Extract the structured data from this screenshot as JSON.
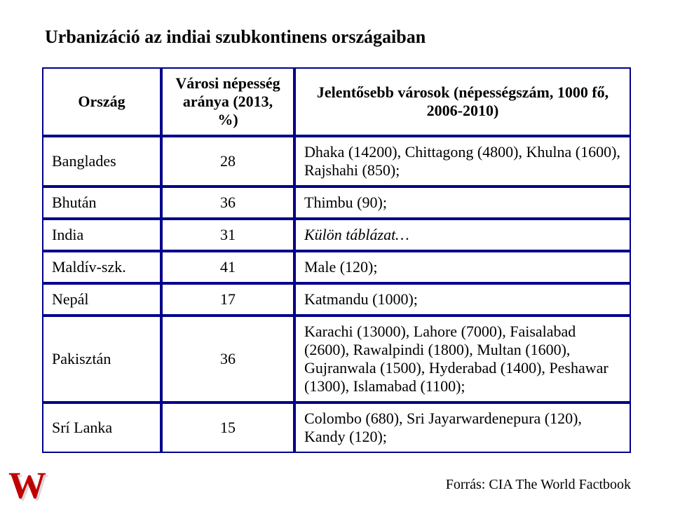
{
  "title": "Urbanizáció az indiai szubkontinens országaiban",
  "columns": {
    "c0": "Ország",
    "c1": "Városi népesség aránya (2013, %)",
    "c2": "Jelentősebb városok (népességszám, 1000 fő, 2006-2010)"
  },
  "rows": [
    {
      "country": "Banglades",
      "pct": "28",
      "cities": "Dhaka (14200), Chittagong (4800), Khulna (1600), Rajshahi (850);"
    },
    {
      "country": "Bhután",
      "pct": "36",
      "cities": "Thimbu (90);"
    },
    {
      "country": "India",
      "pct": "31",
      "cities": "Külön táblázat…",
      "italic": true
    },
    {
      "country": "Maldív-szk.",
      "pct": "41",
      "cities": "Male (120);"
    },
    {
      "country": "Nepál",
      "pct": "17",
      "cities": "Katmandu (1000);"
    },
    {
      "country": "Pakisztán",
      "pct": "36",
      "cities": "Karachi (13000), Lahore (7000), Faisalabad (2600), Rawalpindi (1800), Multan (1600), Gujranwala (1500), Hyderabad (1400), Peshawar (1300), Islamabad (1100);"
    },
    {
      "country": "Srí Lanka",
      "pct": "15",
      "cities": "Colombo (680), Sri Jayarwardenepura (120), Kandy (120);"
    }
  ],
  "source": "Forrás: CIA The World Factbook",
  "watermark": "W",
  "colors": {
    "border": "#00008b",
    "watermark": "#c00000",
    "text": "#000000",
    "background": "#ffffff"
  }
}
